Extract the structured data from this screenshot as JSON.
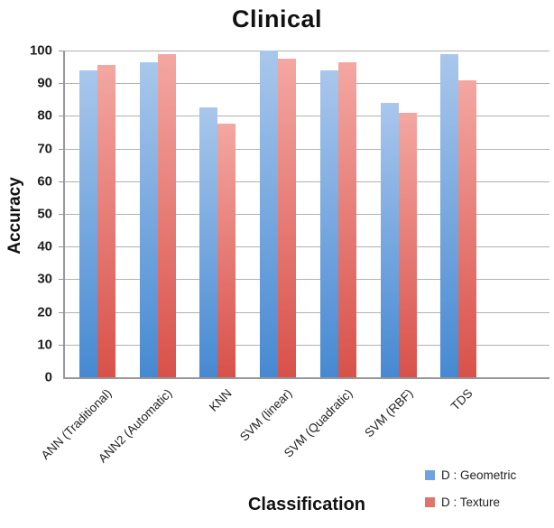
{
  "chart_data": {
    "type": "bar",
    "title": "Clinical",
    "xlabel": "Classification",
    "ylabel": "Accuracy",
    "categories": [
      "ANN (Traditional)",
      "ANN2 (Automatic)",
      "KNN",
      "SVM (linear)",
      "SVM (Quadratic)",
      "SVM (RBF)",
      "TDS"
    ],
    "series": [
      {
        "name": "D : Geometric",
        "values": [
          94,
          96.5,
          82.5,
          100,
          94,
          84,
          99
        ],
        "color_top": "#a9c7ec",
        "color_bottom": "#4689d2",
        "legend_color": "#6ea3dc"
      },
      {
        "name": "D : Texture",
        "values": [
          95.5,
          99,
          77.5,
          97.5,
          96.5,
          81,
          91
        ],
        "color_top": "#f4a7a2",
        "color_bottom": "#d8514a",
        "legend_color": "#e2736b"
      }
    ],
    "ylim": [
      0,
      100
    ],
    "ytick_step": 10,
    "grid": true,
    "legend_position": "bottom-right",
    "gridline_color": "#b2b2b2",
    "axis_color": "#979797"
  }
}
